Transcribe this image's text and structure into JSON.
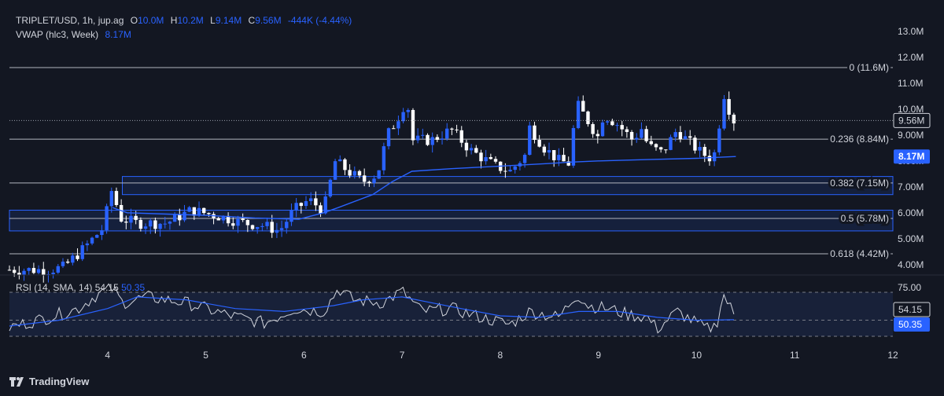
{
  "header": {
    "symbol": "TRIPLET/USD, 1h, jup.ag",
    "open_label": "O",
    "open": "10.0M",
    "high_label": "H",
    "high": "10.2M",
    "low_label": "L",
    "low": "9.14M",
    "close_label": "C",
    "close": "9.56M",
    "change": "-444K (-4.44%)",
    "vwap_label": "VWAP (hlc3, Week)",
    "vwap_value": "8.17M"
  },
  "rsi_header": {
    "label": "RSI (14, SMA, 14)",
    "rsi": "54.15",
    "sma": "50.35"
  },
  "brand": "TradingView",
  "colors": {
    "background": "#131722",
    "accent": "#2962ff",
    "up": "#2962ff",
    "down": "#ffffff",
    "zone": "#2962ff",
    "grid_line": "#b2b5be"
  },
  "chart_data": [
    {
      "type": "candlestick",
      "title": "TRIPLET/USD, 1h, jup.ag",
      "y_axis_ticks": [
        "4.00M",
        "5.00M",
        "6.00M",
        "7.00M",
        "8.00M",
        "9.00M",
        "10.0M",
        "11.0M",
        "12.0M",
        "13.0M"
      ],
      "x_axis_ticks": [
        "4",
        "5",
        "6",
        "7",
        "8",
        "9",
        "10",
        "11",
        "12"
      ],
      "ylim": [
        3.6,
        13.6
      ],
      "xlim": [
        3.0,
        12.0
      ],
      "price_label": "9.56M",
      "vwap_label": "8.17M",
      "fib_levels": [
        {
          "label": "0 (11.6M)",
          "value": 11.6
        },
        {
          "label": "0.236 (8.84M)",
          "value": 8.84
        },
        {
          "label": "0.382 (7.15M)",
          "value": 7.15
        },
        {
          "label": "0.5 (5.78M)",
          "value": 5.78
        },
        {
          "label": "0.618 (4.42M)",
          "value": 4.42
        }
      ],
      "zones": [
        {
          "x_start": 4.15,
          "y_low": 6.7,
          "y_high": 7.4
        },
        {
          "x_start": 3.0,
          "y_low": 5.3,
          "y_high": 6.1
        }
      ],
      "anchors": [
        [
          3.0,
          3.8
        ],
        [
          3.4,
          3.8
        ],
        [
          3.55,
          3.9
        ],
        [
          3.75,
          4.6
        ],
        [
          3.95,
          5.4
        ],
        [
          4.05,
          7.0
        ],
        [
          4.12,
          5.8
        ],
        [
          4.3,
          5.6
        ],
        [
          4.6,
          5.6
        ],
        [
          4.85,
          6.1
        ],
        [
          5.1,
          5.9
        ],
        [
          5.4,
          5.6
        ],
        [
          5.6,
          5.5
        ],
        [
          5.75,
          5.3
        ],
        [
          5.9,
          6.1
        ],
        [
          6.05,
          6.5
        ],
        [
          6.2,
          6.1
        ],
        [
          6.32,
          8.0
        ],
        [
          6.45,
          7.6
        ],
        [
          6.6,
          7.2
        ],
        [
          6.75,
          7.5
        ],
        [
          6.85,
          9.0
        ],
        [
          6.95,
          9.6
        ],
        [
          7.05,
          10.4
        ],
        [
          7.1,
          8.8
        ],
        [
          7.3,
          8.8
        ],
        [
          7.5,
          9.2
        ],
        [
          7.7,
          8.4
        ],
        [
          7.95,
          7.8
        ],
        [
          8.1,
          7.6
        ],
        [
          8.25,
          8.2
        ],
        [
          8.3,
          9.3
        ],
        [
          8.45,
          8.5
        ],
        [
          8.6,
          8.0
        ],
        [
          8.7,
          7.9
        ],
        [
          8.78,
          10.2
        ],
        [
          8.9,
          9.5
        ],
        [
          9.0,
          8.9
        ],
        [
          9.05,
          9.8
        ],
        [
          9.2,
          9.4
        ],
        [
          9.35,
          8.8
        ],
        [
          9.45,
          9.3
        ],
        [
          9.5,
          8.6
        ],
        [
          9.65,
          8.3
        ],
        [
          9.8,
          9.2
        ],
        [
          9.9,
          8.8
        ],
        [
          10.05,
          8.3
        ],
        [
          10.15,
          8.1
        ],
        [
          10.2,
          8.4
        ],
        [
          10.27,
          10.7
        ],
        [
          10.32,
          10.1
        ],
        [
          10.38,
          9.56
        ]
      ],
      "vwap": [
        [
          4.05,
          6.2
        ],
        [
          4.2,
          6.0
        ],
        [
          5.0,
          5.9
        ],
        [
          5.5,
          5.8
        ],
        [
          5.95,
          5.75
        ],
        [
          6.2,
          6.0
        ],
        [
          6.35,
          6.2
        ],
        [
          6.7,
          6.7
        ],
        [
          6.9,
          7.2
        ],
        [
          7.1,
          7.6
        ],
        [
          7.5,
          7.7
        ],
        [
          8.0,
          7.8
        ],
        [
          8.5,
          7.9
        ],
        [
          8.7,
          7.95
        ],
        [
          9.0,
          8.0
        ],
        [
          9.5,
          8.05
        ],
        [
          10.0,
          8.1
        ],
        [
          10.4,
          8.17
        ]
      ],
      "vwap_series_label": "VWAP (hlc3, Week)"
    },
    {
      "type": "line",
      "title": "RSI (14, SMA, 14)",
      "y_axis_ticks": [
        "75.00"
      ],
      "levels": [
        70,
        50,
        30
      ],
      "ylim": [
        26,
        80
      ],
      "rsi_label": "54.15",
      "sma_label": "50.35",
      "rsi_anchors": [
        [
          3.0,
          45
        ],
        [
          3.4,
          52
        ],
        [
          3.7,
          58
        ],
        [
          3.9,
          68
        ],
        [
          4.05,
          72
        ],
        [
          4.15,
          62
        ],
        [
          4.4,
          66
        ],
        [
          4.8,
          62
        ],
        [
          5.2,
          54
        ],
        [
          5.6,
          48
        ],
        [
          5.9,
          58
        ],
        [
          6.2,
          56
        ],
        [
          6.35,
          72
        ],
        [
          6.5,
          64
        ],
        [
          6.8,
          62
        ],
        [
          7.0,
          70
        ],
        [
          7.2,
          56
        ],
        [
          7.5,
          58
        ],
        [
          7.8,
          52
        ],
        [
          8.1,
          47
        ],
        [
          8.3,
          56
        ],
        [
          8.6,
          52
        ],
        [
          8.78,
          68
        ],
        [
          8.9,
          60
        ],
        [
          9.1,
          58
        ],
        [
          9.3,
          54
        ],
        [
          9.5,
          52
        ],
        [
          9.6,
          44
        ],
        [
          9.8,
          56
        ],
        [
          10.0,
          48
        ],
        [
          10.1,
          44
        ],
        [
          10.2,
          46
        ],
        [
          10.27,
          68
        ],
        [
          10.32,
          62
        ],
        [
          10.38,
          54.15
        ]
      ],
      "sma_anchors": [
        [
          3.0,
          46
        ],
        [
          3.5,
          50
        ],
        [
          4.0,
          58
        ],
        [
          4.3,
          66
        ],
        [
          4.8,
          64
        ],
        [
          5.3,
          58
        ],
        [
          5.8,
          56
        ],
        [
          6.3,
          60
        ],
        [
          6.6,
          64
        ],
        [
          7.0,
          66
        ],
        [
          7.3,
          62
        ],
        [
          7.6,
          58
        ],
        [
          8.0,
          53
        ],
        [
          8.4,
          52
        ],
        [
          8.8,
          56
        ],
        [
          9.2,
          56
        ],
        [
          9.6,
          52
        ],
        [
          10.0,
          50
        ],
        [
          10.38,
          50.35
        ]
      ]
    }
  ]
}
